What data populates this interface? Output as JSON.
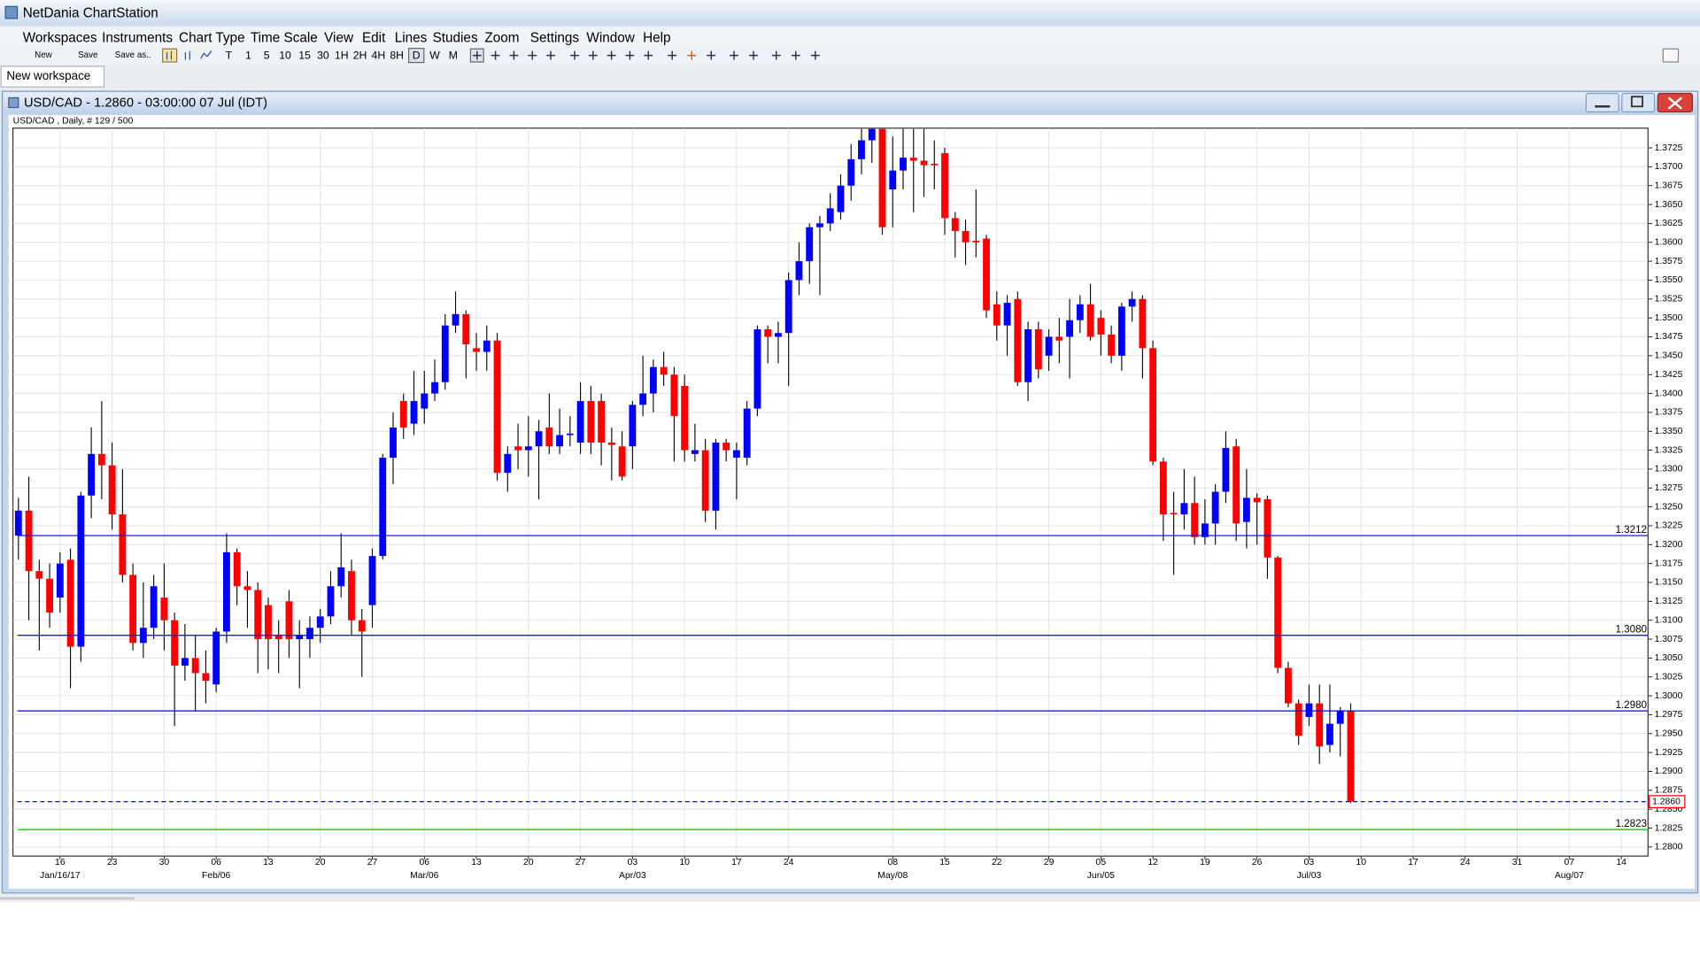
{
  "app": {
    "title": "NetDania ChartStation",
    "menu": [
      "Workspaces",
      "Instruments",
      "Chart Type",
      "Time Scale",
      "View",
      "Edit",
      "Lines",
      "Studies",
      "Zoom",
      "Settings",
      "Window",
      "Help"
    ],
    "toolbar": [
      "New",
      "Save",
      "Save as.."
    ],
    "timeframes": [
      "T",
      "1",
      "5",
      "10",
      "15",
      "30",
      "1H",
      "2H",
      "4H",
      "8H",
      "D",
      "W",
      "M"
    ],
    "tab": "New workspace"
  },
  "chart_data": {
    "type": "candlestick",
    "title": "USD/CAD - 1.2860 - 03:00:00  07 Jul (IDT)",
    "subtitle": "USD/CAD , Daily, # 129 / 500",
    "categories": [
      null,
      null,
      null,
      null,
      "16",
      null,
      null,
      null,
      null,
      "23",
      null,
      null,
      null,
      null,
      "30",
      null,
      null,
      null,
      null,
      "06",
      null,
      null,
      null,
      null,
      "13",
      null,
      null,
      null,
      null,
      "20",
      null,
      null,
      null,
      null,
      "27",
      null,
      null,
      null,
      null,
      "06",
      null,
      null,
      null,
      null,
      "13",
      null,
      null,
      null,
      null,
      "20",
      null,
      null,
      null,
      null,
      "27",
      null,
      null,
      null,
      null,
      "03",
      null,
      null,
      null,
      null,
      "10",
      null,
      null,
      null,
      null,
      "17",
      null,
      null,
      null,
      null,
      "24",
      null,
      null,
      null,
      null,
      null,
      null,
      null,
      null,
      null,
      "08",
      null,
      null,
      null,
      null,
      "15",
      null,
      null,
      null,
      null,
      "22",
      null,
      null,
      null,
      null,
      "29",
      null,
      null,
      null,
      null,
      "05",
      null,
      null,
      null,
      null,
      "12",
      null,
      null,
      null,
      null,
      "19",
      null,
      null,
      null,
      null,
      "26",
      null,
      null,
      null,
      null,
      "03",
      null,
      null,
      null,
      null,
      "10",
      null,
      null,
      null,
      null,
      "17",
      null,
      null,
      null,
      null,
      "24",
      null,
      null,
      null,
      null,
      "31",
      null,
      null,
      null,
      null,
      "07",
      null,
      null,
      null,
      null,
      "14",
      null,
      null
    ],
    "categories2": [
      null,
      null,
      null,
      null,
      "Jan/16/17",
      null,
      null,
      null,
      null,
      null,
      null,
      null,
      null,
      null,
      null,
      null,
      null,
      null,
      null,
      "Feb/06",
      null,
      null,
      null,
      null,
      null,
      null,
      null,
      null,
      null,
      null,
      null,
      null,
      null,
      null,
      null,
      null,
      null,
      null,
      null,
      "Mar/06",
      null,
      null,
      null,
      null,
      null,
      null,
      null,
      null,
      null,
      null,
      null,
      null,
      null,
      null,
      null,
      null,
      null,
      null,
      null,
      "Apr/03",
      null,
      null,
      null,
      null,
      null,
      null,
      null,
      null,
      null,
      null,
      null,
      null,
      null,
      null,
      null,
      null,
      null,
      null,
      null,
      null,
      null,
      null,
      null,
      null,
      "May/08",
      null,
      null,
      null,
      null,
      null,
      null,
      null,
      null,
      null,
      null,
      null,
      null,
      null,
      null,
      null,
      null,
      null,
      null,
      null,
      "Jun/05",
      null,
      null,
      null,
      null,
      null,
      null,
      null,
      null,
      null,
      null,
      null,
      null,
      null,
      null,
      null,
      null,
      null,
      null,
      null,
      "Jul/03",
      null,
      null,
      null,
      null,
      null,
      null,
      null,
      null,
      null,
      null,
      null,
      null,
      null,
      null,
      null,
      null,
      null,
      null,
      null,
      null,
      null,
      null,
      null,
      null,
      "Aug/07",
      null,
      null,
      null,
      null,
      null,
      null,
      null
    ],
    "values": [
      [
        1.3212,
        1.3262,
        1.318,
        1.3245
      ],
      [
        1.3245,
        1.329,
        1.31,
        1.3165
      ],
      [
        1.3165,
        1.318,
        1.306,
        1.3155
      ],
      [
        1.3155,
        1.3175,
        1.309,
        1.311
      ],
      [
        1.313,
        1.319,
        1.311,
        1.3175
      ],
      [
        1.318,
        1.3195,
        1.301,
        1.3065
      ],
      [
        1.3065,
        1.327,
        1.3045,
        1.3265
      ],
      [
        1.3265,
        1.3355,
        1.3235,
        1.332
      ],
      [
        1.332,
        1.339,
        1.326,
        1.3305
      ],
      [
        1.3305,
        1.3335,
        1.322,
        1.324
      ],
      [
        1.324,
        1.33,
        1.315,
        1.316
      ],
      [
        1.316,
        1.3175,
        1.306,
        1.307
      ],
      [
        1.307,
        1.315,
        1.305,
        1.309
      ],
      [
        1.309,
        1.316,
        1.3075,
        1.3145
      ],
      [
        1.313,
        1.3175,
        1.306,
        1.31
      ],
      [
        1.31,
        1.311,
        1.296,
        1.304
      ],
      [
        1.304,
        1.3095,
        1.302,
        1.305
      ],
      [
        1.305,
        1.308,
        1.298,
        1.303
      ],
      [
        1.303,
        1.306,
        1.299,
        1.302
      ],
      [
        1.3015,
        1.309,
        1.3005,
        1.3085
      ],
      [
        1.3085,
        1.3215,
        1.307,
        1.319
      ],
      [
        1.319,
        1.3195,
        1.312,
        1.3145
      ],
      [
        1.3145,
        1.3165,
        1.309,
        1.314
      ],
      [
        1.314,
        1.315,
        1.303,
        1.3075
      ],
      [
        1.312,
        1.313,
        1.3035,
        1.3075
      ],
      [
        1.308,
        1.31,
        1.303,
        1.3075
      ],
      [
        1.3125,
        1.314,
        1.305,
        1.3075
      ],
      [
        1.3075,
        1.31,
        1.301,
        1.308
      ],
      [
        1.3075,
        1.3105,
        1.305,
        1.309
      ],
      [
        1.309,
        1.3115,
        1.307,
        1.3105
      ],
      [
        1.3105,
        1.3165,
        1.3095,
        1.3145
      ],
      [
        1.3145,
        1.3215,
        1.313,
        1.317
      ],
      [
        1.3165,
        1.318,
        1.308,
        1.31
      ],
      [
        1.31,
        1.3115,
        1.3025,
        1.3085
      ],
      [
        1.312,
        1.3195,
        1.309,
        1.3185
      ],
      [
        1.3185,
        1.332,
        1.318,
        1.3315
      ],
      [
        1.3315,
        1.3375,
        1.328,
        1.3355
      ],
      [
        1.339,
        1.34,
        1.334,
        1.3355
      ],
      [
        1.336,
        1.343,
        1.3345,
        1.339
      ],
      [
        1.338,
        1.343,
        1.336,
        1.34
      ],
      [
        1.34,
        1.3445,
        1.339,
        1.3415
      ],
      [
        1.3415,
        1.3505,
        1.3405,
        1.349
      ],
      [
        1.349,
        1.3535,
        1.348,
        1.3505
      ],
      [
        1.3505,
        1.351,
        1.342,
        1.3465
      ],
      [
        1.346,
        1.348,
        1.343,
        1.3455
      ],
      [
        1.3455,
        1.349,
        1.343,
        1.347
      ],
      [
        1.347,
        1.348,
        1.3285,
        1.3295
      ],
      [
        1.3295,
        1.333,
        1.327,
        1.332
      ],
      [
        1.333,
        1.336,
        1.33,
        1.3325
      ],
      [
        1.3325,
        1.337,
        1.329,
        1.333
      ],
      [
        1.333,
        1.3365,
        1.326,
        1.335
      ],
      [
        1.3355,
        1.34,
        1.332,
        1.333
      ],
      [
        1.333,
        1.338,
        1.332,
        1.3345
      ],
      [
        1.3345,
        1.337,
        1.333,
        1.3347
      ],
      [
        1.3335,
        1.3415,
        1.332,
        1.339
      ],
      [
        1.339,
        1.341,
        1.332,
        1.3335
      ],
      [
        1.339,
        1.34,
        1.3305,
        1.3335
      ],
      [
        1.3335,
        1.3355,
        1.3285,
        1.3332
      ],
      [
        1.333,
        1.335,
        1.3285,
        1.329
      ],
      [
        1.333,
        1.339,
        1.33,
        1.3385
      ],
      [
        1.3385,
        1.345,
        1.337,
        1.34
      ],
      [
        1.34,
        1.3445,
        1.3375,
        1.3435
      ],
      [
        1.3435,
        1.3455,
        1.341,
        1.3425
      ],
      [
        1.3425,
        1.3435,
        1.331,
        1.337
      ],
      [
        1.341,
        1.3425,
        1.331,
        1.3325
      ],
      [
        1.332,
        1.336,
        1.331,
        1.3325
      ],
      [
        1.3325,
        1.334,
        1.323,
        1.3245
      ],
      [
        1.3245,
        1.334,
        1.322,
        1.3335
      ],
      [
        1.3335,
        1.334,
        1.331,
        1.3325
      ],
      [
        1.3315,
        1.3335,
        1.326,
        1.3325
      ],
      [
        1.3315,
        1.339,
        1.3305,
        1.338
      ],
      [
        1.338,
        1.349,
        1.337,
        1.3485
      ],
      [
        1.3485,
        1.349,
        1.344,
        1.3475
      ],
      [
        1.3475,
        1.3495,
        1.344,
        1.348
      ],
      [
        1.348,
        1.356,
        1.341,
        1.355
      ],
      [
        1.355,
        1.36,
        1.353,
        1.3575
      ],
      [
        1.3575,
        1.3625,
        1.3545,
        1.362
      ],
      [
        1.362,
        1.3635,
        1.353,
        1.3625
      ],
      [
        1.3625,
        1.3665,
        1.3615,
        1.3645
      ],
      [
        1.364,
        1.369,
        1.363,
        1.3675
      ],
      [
        1.3675,
        1.373,
        1.3655,
        1.371
      ],
      [
        1.371,
        1.375,
        1.369,
        1.3735
      ],
      [
        1.3735,
        1.375,
        1.3705,
        1.375
      ],
      [
        1.375,
        1.375,
        1.361,
        1.362
      ],
      [
        1.367,
        1.374,
        1.362,
        1.3695
      ],
      [
        1.3695,
        1.375,
        1.367,
        1.3712
      ],
      [
        1.3712,
        1.375,
        1.364,
        1.3708
      ],
      [
        1.3708,
        1.375,
        1.366,
        1.3702
      ],
      [
        1.3704,
        1.3735,
        1.367,
        1.3702
      ],
      [
        1.3718,
        1.3725,
        1.361,
        1.3632
      ],
      [
        1.3632,
        1.364,
        1.358,
        1.3615
      ],
      [
        1.3615,
        1.363,
        1.357,
        1.36
      ],
      [
        1.3602,
        1.367,
        1.358,
        1.36
      ],
      [
        1.3605,
        1.361,
        1.35,
        1.351
      ],
      [
        1.3518,
        1.3535,
        1.347,
        1.349
      ],
      [
        1.349,
        1.353,
        1.345,
        1.352
      ],
      [
        1.3525,
        1.3535,
        1.341,
        1.3415
      ],
      [
        1.3415,
        1.3495,
        1.339,
        1.3485
      ],
      [
        1.3485,
        1.3495,
        1.342,
        1.3432
      ],
      [
        1.345,
        1.3485,
        1.343,
        1.3475
      ],
      [
        1.3475,
        1.35,
        1.344,
        1.347
      ],
      [
        1.3475,
        1.3525,
        1.342,
        1.3497
      ],
      [
        1.3497,
        1.353,
        1.348,
        1.3518
      ],
      [
        1.3518,
        1.3545,
        1.347,
        1.3475
      ],
      [
        1.35,
        1.351,
        1.345,
        1.3478
      ],
      [
        1.3478,
        1.349,
        1.344,
        1.345
      ],
      [
        1.345,
        1.352,
        1.343,
        1.3515
      ],
      [
        1.3515,
        1.3535,
        1.3495,
        1.3525
      ],
      [
        1.3525,
        1.353,
        1.342,
        1.346
      ],
      [
        1.346,
        1.347,
        1.3305,
        1.331
      ],
      [
        1.331,
        1.3315,
        1.3205,
        1.324
      ],
      [
        1.3242,
        1.327,
        1.316,
        1.324
      ],
      [
        1.324,
        1.33,
        1.322,
        1.3255
      ],
      [
        1.3255,
        1.329,
        1.32,
        1.321
      ],
      [
        1.321,
        1.326,
        1.32,
        1.3228
      ],
      [
        1.3228,
        1.328,
        1.32,
        1.327
      ],
      [
        1.327,
        1.335,
        1.3255,
        1.3328
      ],
      [
        1.333,
        1.334,
        1.3205,
        1.3228
      ],
      [
        1.323,
        1.33,
        1.3195,
        1.3262
      ],
      [
        1.3262,
        1.3268,
        1.32,
        1.3256
      ],
      [
        1.326,
        1.3265,
        1.3155,
        1.3183
      ],
      [
        1.3183,
        1.3185,
        1.303,
        1.3037
      ],
      [
        1.3037,
        1.3045,
        1.2985,
        1.299
      ],
      [
        1.299,
        1.2995,
        1.2935,
        1.2947
      ],
      [
        1.2972,
        1.3015,
        1.296,
        1.299
      ],
      [
        1.299,
        1.3015,
        1.291,
        1.2933
      ],
      [
        1.2935,
        1.3015,
        1.2925,
        1.2963
      ],
      [
        1.2963,
        1.2985,
        1.292,
        1.298
      ],
      [
        1.298,
        1.299,
        1.2858,
        1.286
      ],
      null,
      null,
      null,
      null,
      null,
      null,
      null,
      null,
      null,
      null,
      null,
      null,
      null,
      null,
      null,
      null,
      null,
      null,
      null,
      null,
      null,
      null,
      null,
      null,
      null,
      null,
      null,
      null
    ],
    "ylim": [
      1.2788,
      1.3751
    ],
    "yticks": [
      {
        "value": 1.28,
        "label": "1.2800"
      },
      1.2825,
      {
        "value": 1.285,
        "label": "1.2850"
      },
      1.2875,
      {
        "value": 1.29,
        "label": "1.2900"
      },
      1.2925,
      {
        "value": 1.295,
        "label": "1.2950"
      },
      1.2975,
      {
        "value": 1.3,
        "label": "1.3000"
      },
      1.3025,
      {
        "value": 1.305,
        "label": "1.3050"
      },
      1.3075,
      {
        "value": 1.31,
        "label": "1.3100"
      },
      1.3125,
      {
        "value": 1.315,
        "label": "1.3150"
      },
      1.3175,
      {
        "value": 1.32,
        "label": "1.3200"
      },
      1.3225,
      {
        "value": 1.325,
        "label": "1.3250"
      },
      1.3275,
      {
        "value": 1.33,
        "label": "1.3300"
      },
      1.3325,
      {
        "value": 1.335,
        "label": "1.3350"
      },
      1.3375,
      {
        "value": 1.34,
        "label": "1.3400"
      },
      1.3425,
      {
        "value": 1.345,
        "label": "1.3450"
      },
      1.3475,
      {
        "value": 1.35,
        "label": "1.3500"
      },
      1.3525,
      {
        "value": 1.355,
        "label": "1.3550"
      },
      1.3575,
      {
        "value": 1.36,
        "label": "1.3600"
      },
      1.3625,
      {
        "value": 1.365,
        "label": "1.3650"
      },
      1.3675,
      {
        "value": 1.37,
        "label": "1.3700"
      },
      1.3725
    ],
    "up_color": "#0000ff",
    "down_color": "#ff0000",
    "wick_color": "#000000",
    "grid": true,
    "hlines": [
      {
        "value": 1.3212,
        "label": "1.3212",
        "color": "#0000ff"
      },
      {
        "value": 1.308,
        "label": "1.3080",
        "color": "#0000ff"
      },
      {
        "value": 1.298,
        "label": "1.2980",
        "color": "#0000ff"
      },
      {
        "value": 1.2823,
        "label": "1.2823",
        "color": "#00cc00"
      }
    ],
    "current": {
      "value": 1.286,
      "label": "1.2860",
      "color": "#0000ff"
    }
  }
}
